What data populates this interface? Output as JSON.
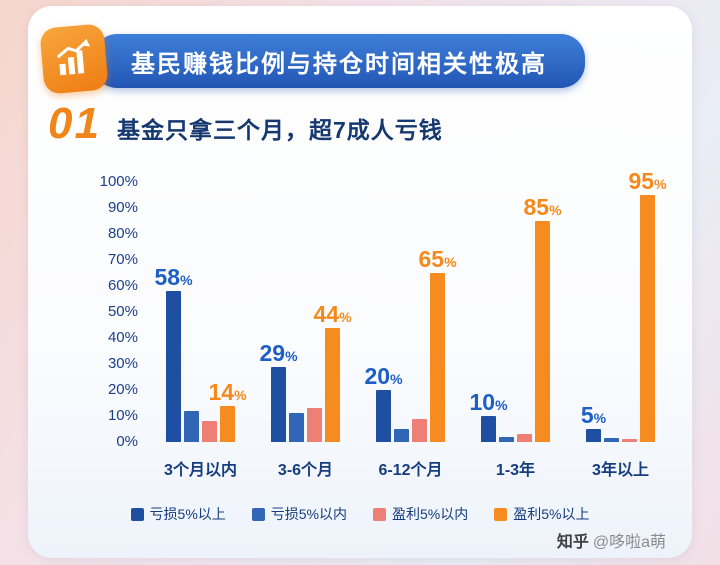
{
  "header": {
    "title": "基民赚钱比例与持仓时间相关性极高",
    "icon": "growth-chart-icon"
  },
  "section": {
    "number": "01",
    "title": "基金只拿三个月，超7成人亏钱"
  },
  "chart_data": {
    "type": "bar",
    "title": "基民赚钱比例与持仓时间相关性极高",
    "categories": [
      "3个月以内",
      "3-6个月",
      "6-12个月",
      "1-3年",
      "3年以上"
    ],
    "series": [
      {
        "name": "亏损5%以上",
        "color": "#1e4fa0",
        "values": [
          58,
          29,
          20,
          10,
          5
        ]
      },
      {
        "name": "亏损5%以内",
        "color": "#3165b5",
        "values": [
          12,
          11,
          5,
          2,
          1.5
        ]
      },
      {
        "name": "盈利5%以内",
        "color": "#ee7f74",
        "values": [
          8,
          13,
          9,
          3,
          1
        ]
      },
      {
        "name": "盈利5%以上",
        "color": "#f68b1f",
        "values": [
          14,
          44,
          65,
          85,
          95
        ]
      }
    ],
    "label_series": [
      {
        "index": 0,
        "color": "#1d5fc5"
      },
      {
        "index": 3,
        "color": "#f6891c"
      }
    ],
    "data_labels_shown": [
      "58%",
      "14%",
      "29%",
      "44%",
      "20%",
      "65%",
      "10%",
      "85%",
      "5%",
      "95%"
    ],
    "ytick_labels": [
      "0%",
      "10%",
      "20%",
      "30%",
      "40%",
      "50%",
      "60%",
      "70%",
      "80%",
      "90%",
      "100%"
    ],
    "ylim": [
      0,
      100
    ],
    "grid": false,
    "legend_position": "bottom"
  },
  "watermark": {
    "brand": "知乎",
    "handle": "@哆啦a萌"
  }
}
